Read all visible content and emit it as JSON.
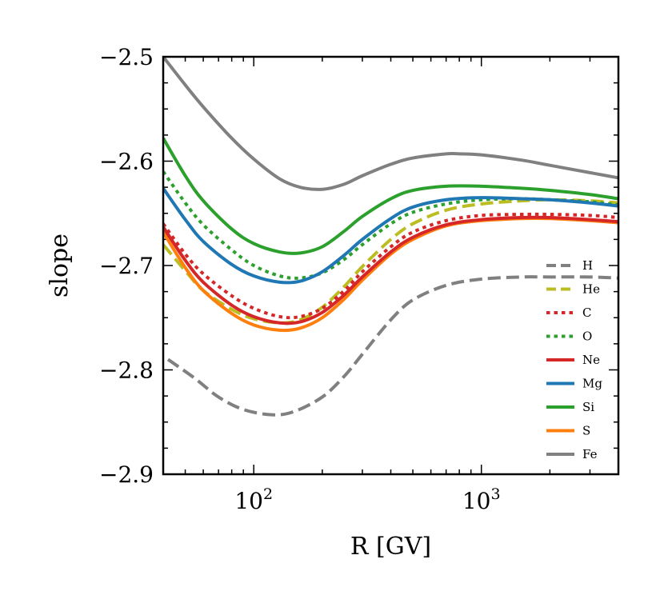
{
  "chart_data": {
    "type": "line",
    "xscale": "log",
    "xlim": [
      40,
      4000
    ],
    "ylim": [
      -2.9,
      -2.5
    ],
    "xlabel": "R [GV]",
    "ylabel": "slope",
    "yticks": [
      -2.9,
      -2.8,
      -2.7,
      -2.6,
      -2.5
    ],
    "ytick_labels": [
      "−2.9",
      "−2.8",
      "−2.7",
      "−2.6",
      "−2.5"
    ],
    "xticks_major": [
      100,
      1000
    ],
    "xtick_labels": [
      {
        "base": "10",
        "exp": "2"
      },
      {
        "base": "10",
        "exp": "3"
      }
    ],
    "legend_position": "lower-right",
    "series": [
      {
        "name": "H",
        "color": "#808080",
        "style": "dashed",
        "x": [
          42,
          55,
          70,
          90,
          120,
          150,
          200,
          250,
          300,
          400,
          500,
          700,
          1000,
          1500,
          2000,
          3000,
          4000
        ],
        "y": [
          -2.79,
          -2.808,
          -2.826,
          -2.838,
          -2.843,
          -2.84,
          -2.826,
          -2.806,
          -2.785,
          -2.752,
          -2.733,
          -2.719,
          -2.713,
          -2.711,
          -2.711,
          -2.711,
          -2.712
        ]
      },
      {
        "name": "He",
        "color": "#bcbd22",
        "style": "dashed",
        "x": [
          40,
          50,
          60,
          80,
          100,
          130,
          160,
          200,
          250,
          300,
          400,
          500,
          700,
          1000,
          1500,
          2000,
          3000,
          4000
        ],
        "y": [
          -2.68,
          -2.705,
          -2.724,
          -2.742,
          -2.751,
          -2.755,
          -2.752,
          -2.74,
          -2.72,
          -2.701,
          -2.675,
          -2.66,
          -2.647,
          -2.641,
          -2.638,
          -2.637,
          -2.638,
          -2.64
        ]
      },
      {
        "name": "C",
        "color": "#d62728",
        "style": "dotted",
        "x": [
          40,
          50,
          60,
          80,
          100,
          130,
          160,
          200,
          250,
          300,
          400,
          500,
          700,
          1000,
          1500,
          2000,
          3000,
          4000
        ],
        "y": [
          -2.66,
          -2.689,
          -2.708,
          -2.729,
          -2.741,
          -2.749,
          -2.749,
          -2.741,
          -2.724,
          -2.706,
          -2.682,
          -2.668,
          -2.657,
          -2.652,
          -2.651,
          -2.651,
          -2.652,
          -2.654
        ]
      },
      {
        "name": "O",
        "color": "#2ca02c",
        "style": "dotted",
        "x": [
          40,
          50,
          60,
          80,
          100,
          130,
          160,
          200,
          250,
          300,
          400,
          500,
          700,
          1000,
          1500,
          2000,
          3000,
          4000
        ],
        "y": [
          -2.61,
          -2.64,
          -2.661,
          -2.685,
          -2.7,
          -2.71,
          -2.712,
          -2.707,
          -2.694,
          -2.68,
          -2.66,
          -2.649,
          -2.641,
          -2.637,
          -2.636,
          -2.637,
          -2.639,
          -2.642
        ]
      },
      {
        "name": "Ne",
        "color": "#d62728",
        "style": "solid",
        "x": [
          40,
          50,
          60,
          80,
          100,
          130,
          160,
          200,
          250,
          300,
          400,
          500,
          700,
          1000,
          1500,
          2000,
          3000,
          4000
        ],
        "y": [
          -2.663,
          -2.695,
          -2.716,
          -2.738,
          -2.749,
          -2.755,
          -2.754,
          -2.745,
          -2.728,
          -2.711,
          -2.687,
          -2.673,
          -2.661,
          -2.656,
          -2.654,
          -2.654,
          -2.656,
          -2.658
        ]
      },
      {
        "name": "Mg",
        "color": "#1f77b4",
        "style": "solid",
        "x": [
          40,
          50,
          60,
          80,
          100,
          130,
          160,
          200,
          250,
          300,
          400,
          500,
          700,
          1000,
          1500,
          2000,
          3000,
          4000
        ],
        "y": [
          -2.626,
          -2.656,
          -2.677,
          -2.699,
          -2.71,
          -2.716,
          -2.715,
          -2.706,
          -2.69,
          -2.675,
          -2.655,
          -2.644,
          -2.637,
          -2.635,
          -2.636,
          -2.637,
          -2.64,
          -2.643
        ]
      },
      {
        "name": "Si",
        "color": "#2ca02c",
        "style": "solid",
        "x": [
          40,
          50,
          60,
          80,
          100,
          130,
          160,
          200,
          250,
          300,
          400,
          500,
          700,
          1000,
          1500,
          2000,
          3000,
          4000
        ],
        "y": [
          -2.578,
          -2.614,
          -2.638,
          -2.665,
          -2.679,
          -2.687,
          -2.688,
          -2.682,
          -2.667,
          -2.653,
          -2.636,
          -2.628,
          -2.624,
          -2.624,
          -2.626,
          -2.628,
          -2.632,
          -2.636
        ]
      },
      {
        "name": "S",
        "color": "#ff7f0e",
        "style": "solid",
        "x": [
          40,
          50,
          60,
          80,
          100,
          130,
          160,
          200,
          250,
          300,
          400,
          500,
          700,
          1000,
          1500,
          2000,
          3000,
          4000
        ],
        "y": [
          -2.668,
          -2.702,
          -2.724,
          -2.746,
          -2.757,
          -2.762,
          -2.76,
          -2.75,
          -2.732,
          -2.714,
          -2.689,
          -2.675,
          -2.662,
          -2.657,
          -2.655,
          -2.655,
          -2.657,
          -2.659
        ]
      },
      {
        "name": "Fe",
        "color": "#808080",
        "style": "solid",
        "x": [
          40,
          50,
          60,
          80,
          100,
          130,
          160,
          200,
          250,
          300,
          400,
          500,
          700,
          800,
          1000,
          1500,
          2000,
          3000,
          4000
        ],
        "y": [
          -2.5,
          -2.527,
          -2.548,
          -2.578,
          -2.598,
          -2.617,
          -2.625,
          -2.627,
          -2.622,
          -2.614,
          -2.603,
          -2.597,
          -2.593,
          -2.593,
          -2.594,
          -2.599,
          -2.604,
          -2.611,
          -2.616
        ]
      }
    ]
  }
}
